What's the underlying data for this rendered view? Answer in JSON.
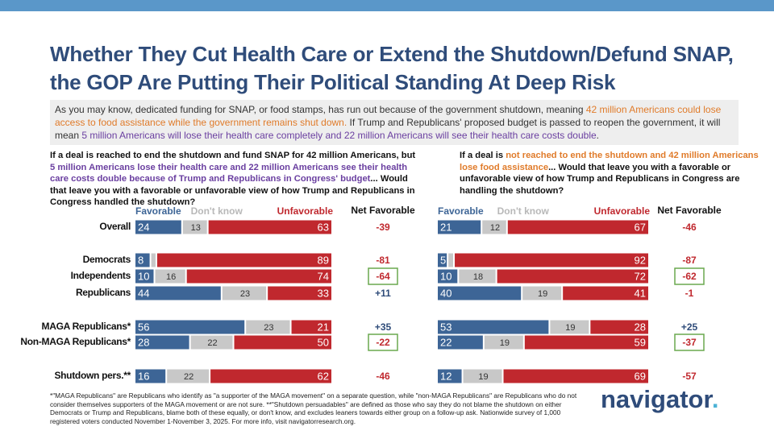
{
  "header": {
    "title": "Whether They Cut Health Care or Extend the Shutdown/Defund SNAP, the GOP Are Putting Their Political Standing At Deep Risk"
  },
  "intro": [
    {
      "text": "As you may know, dedicated funding for SNAP, or food stamps, has run out because of the government shutdown, meaning ",
      "color": "#333333"
    },
    {
      "text": "42 million Americans could lose access to food assistance while the government remains shut down.",
      "color": "#e07b2a"
    },
    {
      "text": " If Trump and Republicans' proposed budget is passed to reopen the government, it will mean ",
      "color": "#333333"
    },
    {
      "text": "5 million Americans will lose their health care completely and 22 million Americans will see their health care costs double",
      "color": "#6a3fa0"
    },
    {
      "text": ".",
      "color": "#333333"
    }
  ],
  "chart_data": [
    {
      "type": "stacked-bar",
      "question": [
        {
          "text": "If a deal is reached to end the shutdown and fund SNAP for 42 million Americans, but ",
          "color": "#111111"
        },
        {
          "text": "5 million Americans lose their health care and 22 million Americans see their health care costs double because of Trump and Republicans in Congress' budget",
          "color": "#6a3fa0"
        },
        {
          "text": "... Would that leave you with a favorable or unfavorable view of how Trump and Republicans in Congress handled the shutdown?",
          "color": "#111111"
        }
      ],
      "categories": [
        "Overall",
        "Democrats",
        "Independents",
        "Republicans",
        "MAGA Republicans*",
        "Non-MAGA Republicans*",
        "Shutdown pers.**"
      ],
      "xlim": [
        0,
        100
      ],
      "series": [
        {
          "name": "Favorable",
          "color": "#3d6596",
          "values": [
            24,
            8,
            10,
            44,
            56,
            28,
            16
          ]
        },
        {
          "name": "Don't know",
          "color": "#c8c8c8",
          "values": [
            13,
            3,
            16,
            23,
            23,
            22,
            22
          ],
          "value_labels": [
            "13",
            null,
            "16",
            "23",
            "23",
            "22",
            "22"
          ]
        },
        {
          "name": "Unfavorable",
          "color": "#c0282e",
          "values": [
            63,
            89,
            74,
            33,
            21,
            50,
            62
          ]
        }
      ],
      "net": {
        "name": "Net Favorable",
        "values": [
          -39,
          -81,
          -64,
          11,
          35,
          -22,
          -46
        ],
        "value_labels": [
          "-39",
          "-81",
          "-64",
          "+11",
          "+35",
          "-22",
          "-46"
        ],
        "boxed": [
          false,
          false,
          true,
          false,
          false,
          true,
          false
        ],
        "box_color": "#6aa84f"
      }
    },
    {
      "type": "stacked-bar",
      "question": [
        {
          "text": "If a deal is ",
          "color": "#111111"
        },
        {
          "text": "not reached to end the shutdown and 42 million Americans lose food assistance",
          "color": "#e07b2a"
        },
        {
          "text": "... Would that leave you with a favorable or unfavorable view of how Trump and Republicans in Congress are handling the shutdown?",
          "color": "#111111"
        }
      ],
      "xlim": [
        0,
        100
      ],
      "series": [
        {
          "name": "Favorable",
          "color": "#3d6596",
          "values": [
            21,
            5,
            10,
            40,
            53,
            22,
            12
          ]
        },
        {
          "name": "Don't know",
          "color": "#c8c8c8",
          "values": [
            12,
            3,
            18,
            19,
            19,
            19,
            19
          ],
          "value_labels": [
            "12",
            null,
            "18",
            "19",
            "19",
            "19",
            "19"
          ]
        },
        {
          "name": "Unfavorable",
          "color": "#c0282e",
          "values": [
            67,
            92,
            72,
            41,
            28,
            59,
            69
          ]
        }
      ],
      "net": {
        "name": "Net Favorable",
        "values": [
          -46,
          -87,
          -62,
          -1,
          25,
          -37,
          -57
        ],
        "value_labels": [
          "-46",
          "-87",
          "-62",
          "-1",
          "+25",
          "-37",
          "-57"
        ],
        "boxed": [
          false,
          false,
          true,
          false,
          false,
          true,
          false
        ],
        "box_color": "#6aa84f"
      }
    }
  ],
  "footnote": "*\"MAGA Republicans\" are Republicans who identify as \"a supporter of the MAGA movement\" on a separate question, while \"non-MAGA Republicans\" are Republicans who do not consider themselves supporters of the MAGA movement or are not sure. **\"Shutdown persuadables\" are defined as those who say they do not blame the shutdown on either Democrats or Trump and Republicans, blame both of these equally, or don't know, and excludes leaners towards either group on a follow-up ask. Nationwide survey of 1,000 registered voters conducted November 1-November 3, 2025. For more info, visit navigatorresearch.org.",
  "logo": "navigator"
}
